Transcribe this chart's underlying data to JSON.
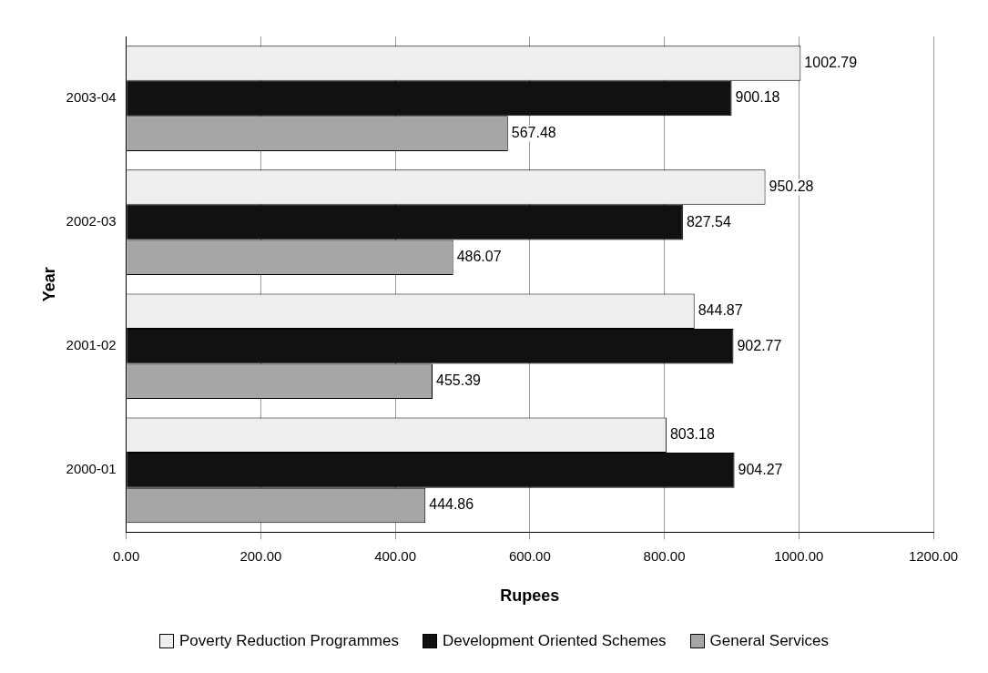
{
  "chart_data": {
    "type": "bar",
    "orientation": "horizontal",
    "xlabel": "Rupees",
    "ylabel": "Year",
    "categories": [
      "2003-04",
      "2002-03",
      "2001-02",
      "2000-01"
    ],
    "series": [
      {
        "name": "Poverty Reduction Programmes",
        "color": "#eeeeee",
        "values": [
          1002.79,
          950.28,
          844.87,
          803.18
        ]
      },
      {
        "name": "Development Oriented Schemes",
        "color": "#111111",
        "values": [
          900.18,
          827.54,
          902.77,
          904.27
        ]
      },
      {
        "name": "General Services",
        "color": "#a6a6a6",
        "values": [
          567.48,
          486.07,
          455.39,
          444.86
        ]
      }
    ],
    "xlim": [
      0,
      1200
    ],
    "xticks": [
      {
        "value": 0,
        "label": "0.00"
      },
      {
        "value": 200,
        "label": "200.00"
      },
      {
        "value": 400,
        "label": "400.00"
      },
      {
        "value": 600,
        "label": "600.00"
      },
      {
        "value": 800,
        "label": "800.00"
      },
      {
        "value": 1000,
        "label": "1000.00"
      },
      {
        "value": 1200,
        "label": "1200.00"
      }
    ],
    "grid": "x",
    "legend": "bottom",
    "data_labels": true
  }
}
